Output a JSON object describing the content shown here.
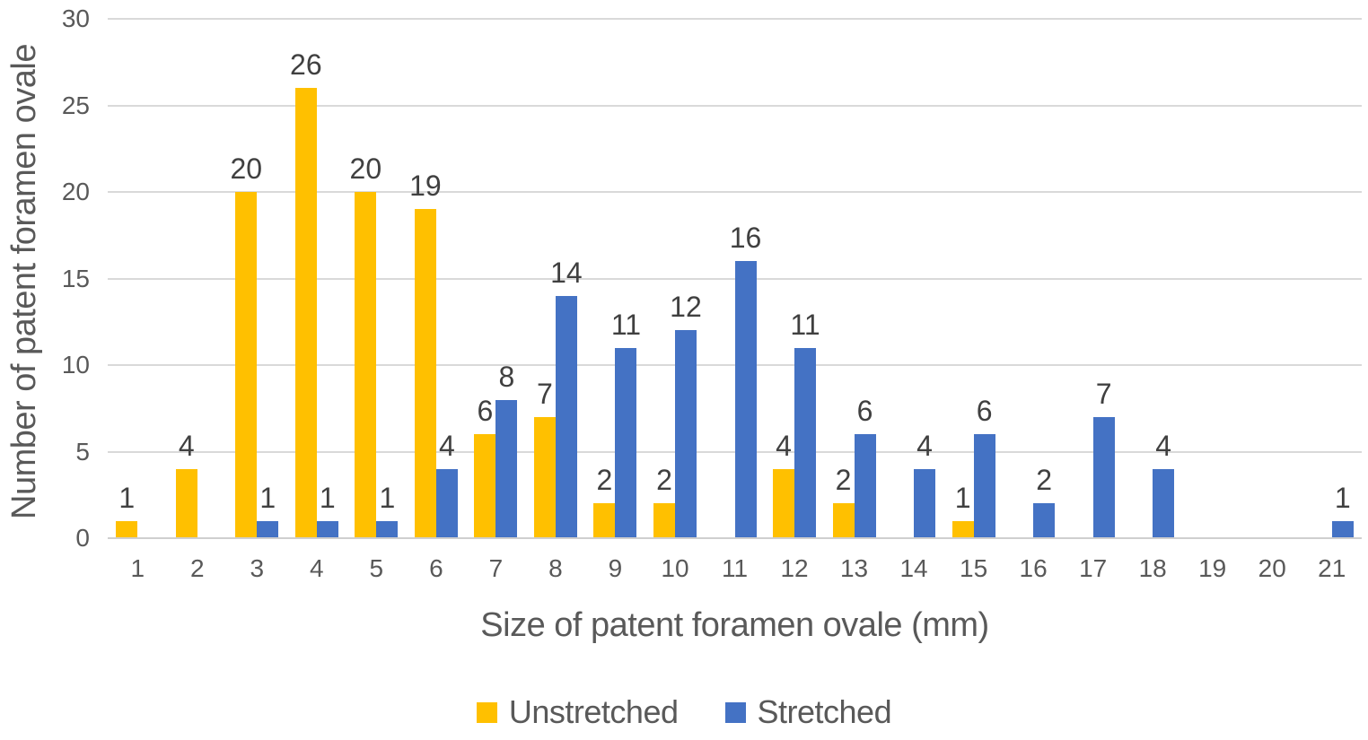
{
  "chart_data": {
    "type": "bar",
    "title": "",
    "xlabel": "Size of patent foramen ovale (mm)",
    "ylabel": "Number of patent foramen ovale",
    "categories": [
      "1",
      "2",
      "3",
      "4",
      "5",
      "6",
      "7",
      "8",
      "9",
      "10",
      "11",
      "12",
      "13",
      "14",
      "15",
      "16",
      "17",
      "18",
      "19",
      "20",
      "21"
    ],
    "series": [
      {
        "name": "Unstretched",
        "color": "#FFC000",
        "values": [
          1,
          4,
          20,
          26,
          20,
          19,
          6,
          7,
          2,
          2,
          null,
          4,
          2,
          null,
          1,
          null,
          null,
          null,
          null,
          null,
          null
        ]
      },
      {
        "name": "Stretched",
        "color": "#4472C4",
        "values": [
          null,
          null,
          1,
          1,
          1,
          4,
          8,
          14,
          11,
          12,
          16,
          11,
          6,
          4,
          6,
          2,
          7,
          4,
          null,
          null,
          1
        ]
      }
    ],
    "ylim": [
      0,
      30
    ],
    "yticks": [
      0,
      5,
      10,
      15,
      20,
      25,
      30
    ],
    "grid": true,
    "data_labels": "outside-end",
    "legend_position": "bottom",
    "colors": {
      "gridline": "#D9D9D9",
      "axis_line": "#CFCFCF",
      "tick_text": "#595959",
      "data_label_text": "#404040",
      "axis_title_text": "#595959",
      "legend_text": "#595959",
      "background": "#FFFFFF"
    }
  }
}
